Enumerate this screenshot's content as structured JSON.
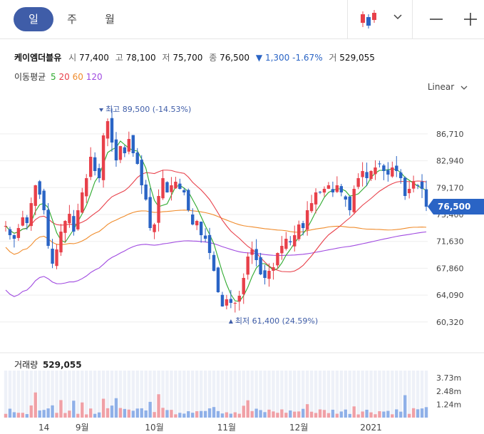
{
  "tabs": [
    {
      "label": "일",
      "active": true
    },
    {
      "label": "주",
      "active": false
    },
    {
      "label": "월",
      "active": false
    }
  ],
  "toolbar": {
    "chart_type_icon": "candlestick-icon",
    "dropdown_icon": "chevron-down-icon",
    "zoom_out_icon": "minus-icon",
    "zoom_in_icon": "plus-icon"
  },
  "stock": {
    "name": "케이엠더블유",
    "open_label": "시",
    "open": "77,400",
    "high_label": "고",
    "high": "78,100",
    "low_label": "저",
    "low": "75,700",
    "close_label": "종",
    "close": "76,500",
    "change": "1,300",
    "change_pct": "-1.67%",
    "volume_label": "거",
    "volume": "529,055"
  },
  "ma_legend": {
    "label": "이동평균",
    "periods": [
      "5",
      "20",
      "60",
      "120"
    ],
    "colors": [
      "#2eaa2e",
      "#e8404a",
      "#f08c2c",
      "#a04ae0"
    ]
  },
  "scale_mode": "Linear",
  "volume_panel": {
    "title": "거래량",
    "value": "529,055"
  },
  "chart_data": {
    "type": "candlestick",
    "yticks": [
      "86,710",
      "82,940",
      "79,170",
      "75,400",
      "71,630",
      "67,860",
      "64,090",
      "60,320"
    ],
    "yvalues": [
      86710,
      82940,
      79170,
      75400,
      71630,
      67860,
      64090,
      60320
    ],
    "ylim": [
      58500,
      91000
    ],
    "current_price": "76,500",
    "current_value": 76500,
    "xlabels": [
      "14",
      "9월",
      "10월",
      "11월",
      "12월",
      "2021"
    ],
    "xlabel_index": [
      9,
      18,
      35,
      52,
      69,
      86
    ],
    "high_annotation": {
      "text": "최고 89,500 (-14.53%)",
      "value": 89500,
      "index": 23
    },
    "low_annotation": {
      "text": "최저 61,400 (24.59%)",
      "value": 61400,
      "index": 52
    },
    "closes": [
      73800,
      72500,
      72000,
      73500,
      75000,
      74200,
      77000,
      79500,
      78200,
      76000,
      71000,
      68500,
      70500,
      73000,
      74500,
      75500,
      73000,
      76000,
      78500,
      80500,
      83500,
      81500,
      80500,
      86500,
      88500,
      85500,
      83000,
      85000,
      84000,
      86000,
      84000,
      82500,
      79500,
      77500,
      73500,
      74000,
      78000,
      80500,
      78500,
      79500,
      80000,
      79000,
      78500,
      76000,
      74000,
      74500,
      72500,
      72000,
      70000,
      67500,
      64500,
      62500,
      63500,
      63000,
      63000,
      64000,
      66500,
      69500,
      70500,
      69000,
      67000,
      66500,
      67500,
      68000,
      70000,
      71000,
      72000,
      71500,
      72500,
      74000,
      73500,
      76000,
      77000,
      78500,
      78500,
      79000,
      79500,
      78500,
      79500,
      78500,
      77500,
      76000,
      79000,
      80500,
      81500,
      80500,
      81500,
      82000,
      82500,
      81500,
      81000,
      82000,
      81500,
      80500,
      78000,
      79000,
      80000,
      79500,
      79000,
      76500
    ],
    "volume_ylim": [
      0,
      4400000
    ],
    "volume_ticks": [
      "3.73m",
      "2.48m",
      "1.24m"
    ],
    "volume_tick_values": [
      3730000,
      2480000,
      1240000
    ]
  }
}
